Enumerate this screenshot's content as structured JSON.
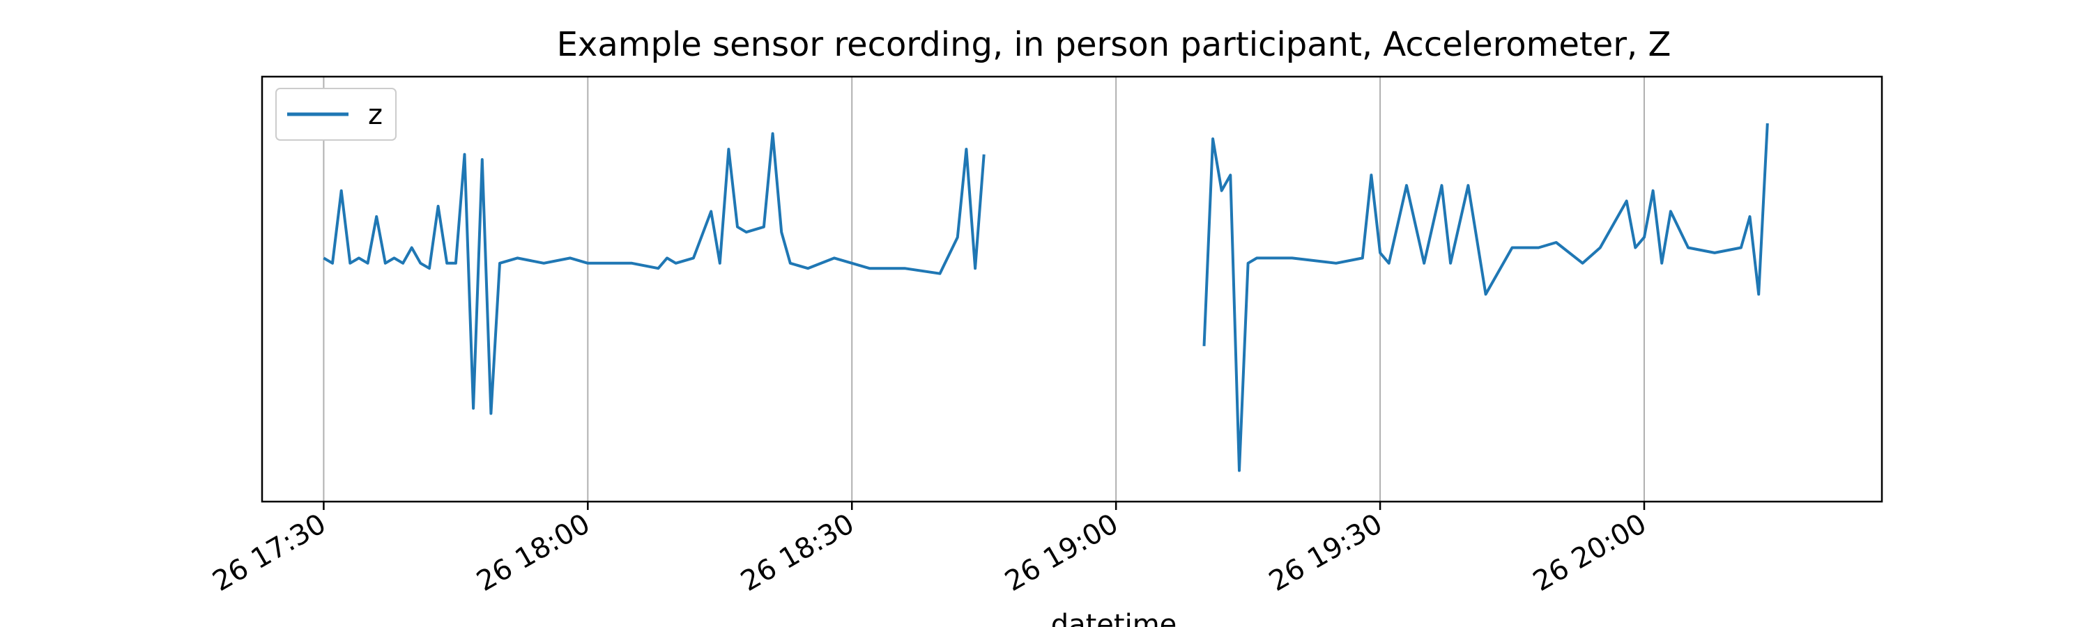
{
  "chart_data": {
    "type": "line",
    "title": "Example sensor recording, in person participant, Accelerometer, Z",
    "xlabel": "datetime",
    "ylabel": "",
    "x_ticks": [
      "26 17:30",
      "26 18:00",
      "26 18:30",
      "26 19:00",
      "26 19:30",
      "26 20:00"
    ],
    "y_tick_labels_visible": false,
    "grid": "vertical",
    "legend": "top-left",
    "colors": {
      "series": "#1f77b4",
      "grid": "#b0b0b0",
      "axes": "#000000"
    },
    "series": [
      {
        "name": "z",
        "segments": [
          {
            "x": [
              "26 17:30",
              "26 17:31",
              "26 17:32",
              "26 17:33",
              "26 17:34",
              "26 17:35",
              "26 17:36",
              "26 17:37",
              "26 17:38",
              "26 17:39",
              "26 17:40",
              "26 17:41",
              "26 17:42",
              "26 17:43",
              "26 17:44",
              "26 17:45",
              "26 17:46",
              "26 17:47",
              "26 17:48",
              "26 17:49",
              "26 17:50",
              "26 17:52",
              "26 17:55",
              "26 17:58",
              "26 18:00",
              "26 18:05",
              "26 18:08",
              "26 18:09",
              "26 18:10",
              "26 18:12",
              "26 18:14",
              "26 18:15",
              "26 18:16",
              "26 18:17",
              "26 18:18",
              "26 18:20",
              "26 18:21",
              "26 18:22",
              "26 18:23",
              "26 18:25",
              "26 18:28",
              "26 18:32",
              "26 18:36",
              "26 18:40",
              "26 18:42",
              "26 18:43",
              "26 18:44",
              "26 18:45"
            ],
            "y": [
              0.05,
              0.0,
              0.7,
              0.0,
              0.05,
              0.0,
              0.45,
              0.0,
              0.05,
              0.0,
              0.15,
              0.0,
              -0.05,
              0.55,
              0.0,
              0.0,
              1.05,
              -1.4,
              1.0,
              -1.45,
              0.0,
              0.05,
              0.0,
              0.05,
              0.0,
              0.0,
              -0.05,
              0.05,
              0.0,
              0.05,
              0.5,
              0.0,
              1.1,
              0.35,
              0.3,
              0.35,
              1.25,
              0.3,
              0.0,
              -0.05,
              0.05,
              -0.05,
              -0.05,
              -0.1,
              0.25,
              1.1,
              -0.05,
              1.05
            ]
          },
          {
            "x": [
              "26 19:10",
              "26 19:11",
              "26 19:12",
              "26 19:13",
              "26 19:14",
              "26 19:15",
              "26 19:16",
              "26 19:20",
              "26 19:25",
              "26 19:28",
              "26 19:29",
              "26 19:30",
              "26 19:31",
              "26 19:33",
              "26 19:35",
              "26 19:37",
              "26 19:38",
              "26 19:40",
              "26 19:42",
              "26 19:45",
              "26 19:48",
              "26 19:50",
              "26 19:53",
              "26 19:55",
              "26 19:58",
              "26 19:59",
              "26 20:00",
              "26 20:01",
              "26 20:02",
              "26 20:03",
              "26 20:05",
              "26 20:08",
              "26 20:11",
              "26 20:12",
              "26 20:13",
              "26 20:14"
            ],
            "y": [
              -0.8,
              1.2,
              0.7,
              0.85,
              -2.0,
              0.0,
              0.05,
              0.05,
              0.0,
              0.05,
              0.85,
              0.1,
              0.0,
              0.75,
              0.0,
              0.75,
              0.0,
              0.75,
              -0.3,
              0.15,
              0.15,
              0.2,
              0.0,
              0.15,
              0.6,
              0.15,
              0.25,
              0.7,
              0.0,
              0.5,
              0.15,
              0.1,
              0.15,
              0.45,
              -0.3,
              1.35
            ]
          }
        ]
      }
    ],
    "ylim": [
      -2.3,
      1.8
    ]
  }
}
